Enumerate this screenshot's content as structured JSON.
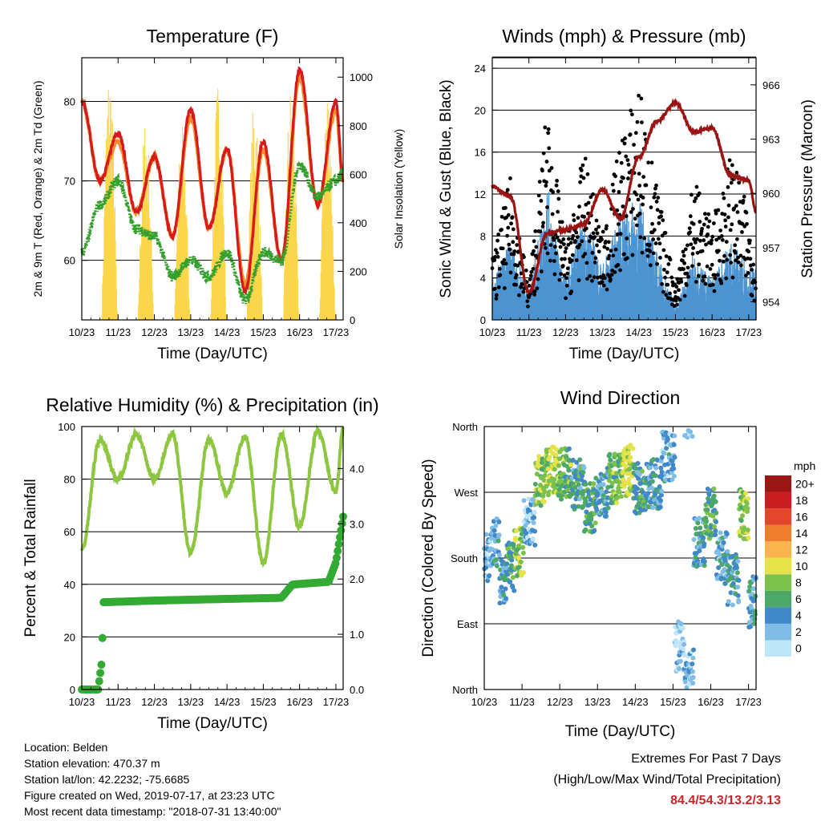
{
  "colors": {
    "t2m": "#d7191c",
    "t9m": "#f58d2b",
    "td2m": "#33a02c",
    "solar": "#fbd64b",
    "wind": "#4d94d1",
    "gust": "#000000",
    "pressure": "#9b1414",
    "rh": "#8dc63f",
    "precip": "#33aa33",
    "highlight": "#c8262b"
  },
  "time_ticks": [
    "10/23",
    "11/23",
    "12/23",
    "13/23",
    "14/23",
    "15/23",
    "16/23",
    "17/23"
  ],
  "temperature": {
    "title": "Temperature (F)",
    "xlabel": "Time (Day/UTC)",
    "ylabel_left": "2m & 9m T (Red, Orange) & 2m Td (Green)",
    "ylabel_right": "Solar Insolation (Yellow)",
    "left_ticks": [
      "60",
      "70",
      "80"
    ],
    "right_ticks": [
      "0",
      "200",
      "400",
      "600",
      "800",
      "1000"
    ]
  },
  "winds": {
    "title": "Winds (mph) & Pressure (mb)",
    "xlabel": "Time (Day/UTC)",
    "ylabel_left": "Sonic Wind & Gust (Blue, Black)",
    "ylabel_right": "Station Pressure (Maroon)",
    "left_ticks": [
      "0",
      "4",
      "8",
      "12",
      "16",
      "20",
      "24"
    ],
    "right_ticks": [
      "954",
      "957",
      "960",
      "963",
      "966"
    ]
  },
  "humidity": {
    "title": "Relative Humidity (%) & Precipitation (in)",
    "xlabel": "Time (Day/UTC)",
    "ylabel_left": "Percent & Total Rainfall",
    "left_ticks": [
      "0",
      "20",
      "40",
      "60",
      "80",
      "100"
    ],
    "right_ticks": [
      "0.0",
      "1.0",
      "2.0",
      "3.0",
      "4.0"
    ]
  },
  "direction": {
    "title": "Wind Direction",
    "xlabel": "Time (Day/UTC)",
    "ylabel_left": "Direction (Colored By Speed)",
    "dir_ticks": [
      "North",
      "East",
      "South",
      "West",
      "North"
    ],
    "legend_title": "mph",
    "legend_labels": [
      "0",
      "2",
      "4",
      "6",
      "8",
      "10",
      "12",
      "14",
      "16",
      "18",
      "20+"
    ],
    "legend_colors": [
      "#bfe6f6",
      "#7fbde6",
      "#4188c8",
      "#4ca868",
      "#7cc14a",
      "#e6e24a",
      "#f9b54b",
      "#f07d2e",
      "#e3462a",
      "#c81e22",
      "#9d1616"
    ]
  },
  "info": {
    "location": "Location: Belden",
    "elevation": "Station elevation: 470.37 m",
    "latlon": "Station lat/lon: 42.2232; -75.6685",
    "created": "Figure created on Wed, 2019-07-17, at 23:23 UTC",
    "recent": "Most recent data timestamp: \"2018-07-31 13:40:00\""
  },
  "extremes": {
    "title": "Extremes For Past 7 Days",
    "subtitle": "(High/Low/Max Wind/Total Precipitation)",
    "values": "84.4/54.3/13.2/3.13"
  },
  "chart_data": [
    {
      "type": "line",
      "title": "Temperature (F)",
      "xlabel": "Time (Day/UTC)",
      "ylabel": "2m & 9m T (Red, Orange) & 2m Td (Green)",
      "y2label": "Solar Insolation (Yellow)",
      "x": [
        10,
        10.5,
        11,
        11.5,
        12,
        12.5,
        13,
        13.5,
        14,
        14.5,
        15,
        15.5,
        16,
        16.5,
        17,
        17.2
      ],
      "xlim": [
        10,
        17.2
      ],
      "ylim": [
        52.5,
        85.5
      ],
      "y2lim": [
        0,
        1080
      ],
      "series": [
        {
          "name": "2m T",
          "values": [
            80,
            70,
            76,
            66,
            73,
            63,
            79,
            64,
            74,
            56,
            75,
            60,
            84,
            67,
            80,
            70
          ]
        },
        {
          "name": "9m T",
          "values": [
            80,
            70,
            75,
            66,
            73,
            63,
            78,
            64,
            74,
            57,
            74,
            60,
            83,
            67,
            79,
            70
          ]
        },
        {
          "name": "2m Td",
          "values": [
            61,
            67,
            70,
            64,
            63,
            58,
            60,
            58,
            61,
            55,
            61,
            60,
            72,
            68,
            70,
            71
          ]
        },
        {
          "name": "Solar Insolation",
          "values": [
            20,
            900,
            30,
            800,
            20,
            850,
            30,
            900,
            20,
            950,
            30,
            950,
            20,
            1000,
            30,
            600
          ]
        }
      ]
    },
    {
      "type": "line",
      "title": "Winds (mph) & Pressure (mb)",
      "xlabel": "Time (Day/UTC)",
      "ylabel": "Sonic Wind & Gust (Blue, Black)",
      "y2label": "Station Pressure (Maroon)",
      "x": [
        10,
        10.5,
        11,
        11.5,
        12,
        12.5,
        13,
        13.5,
        14,
        14.5,
        15,
        15.5,
        16,
        16.5,
        17,
        17.2
      ],
      "xlim": [
        10,
        17.2
      ],
      "ylim": [
        0,
        25
      ],
      "y2lim": [
        953,
        967.5
      ],
      "series": [
        {
          "name": "Sonic Wind",
          "values": [
            3,
            6,
            2,
            10,
            3,
            8,
            4,
            8,
            9,
            5,
            1,
            5,
            3,
            6,
            4,
            4
          ]
        },
        {
          "name": "Gust",
          "values": [
            5,
            12,
            3,
            18,
            6,
            14,
            7,
            15,
            20,
            11,
            3,
            12,
            8,
            14,
            9,
            5
          ]
        },
        {
          "name": "Station Pressure",
          "values": [
            960.4,
            959.8,
            954.5,
            957.8,
            958.0,
            958.3,
            960.2,
            958.6,
            962.0,
            964.0,
            965.0,
            963.4,
            963.6,
            961.0,
            960.7,
            959.0
          ]
        }
      ]
    },
    {
      "type": "line",
      "title": "Relative Humidity (%) & Precipitation (in)",
      "xlabel": "Time (Day/UTC)",
      "ylabel": "Percent & Total Rainfall",
      "x": [
        10,
        10.5,
        11,
        11.5,
        12,
        12.5,
        13,
        13.5,
        14,
        14.5,
        15,
        15.5,
        16,
        16.5,
        17,
        17.2
      ],
      "xlim": [
        10,
        17.2
      ],
      "ylim": [
        0,
        100
      ],
      "y2lim": [
        0,
        4.76
      ],
      "series": [
        {
          "name": "Relative Humidity",
          "values": [
            53,
            95,
            80,
            97,
            80,
            97,
            52,
            95,
            75,
            96,
            48,
            97,
            62,
            98,
            75,
            99
          ]
        },
        {
          "name": "Total Precipitation",
          "values": [
            0.0,
            0.2,
            1.58,
            1.58,
            1.6,
            1.61,
            1.63,
            1.64,
            1.65,
            1.65,
            1.66,
            1.66,
            1.9,
            1.92,
            2.2,
            3.13
          ]
        }
      ]
    },
    {
      "type": "scatter",
      "title": "Wind Direction",
      "xlabel": "Time (Day/UTC)",
      "ylabel": "Direction (Colored By Speed)",
      "xlim": [
        10,
        17.2
      ],
      "ylim": [
        0,
        360
      ],
      "colorbar_label": "mph",
      "points": [
        {
          "x": 10.1,
          "dir": 180,
          "speed": 2
        },
        {
          "x": 10.3,
          "dir": 200,
          "speed": 3
        },
        {
          "x": 10.5,
          "dir": 150,
          "speed": 4
        },
        {
          "x": 10.7,
          "dir": 170,
          "speed": 6
        },
        {
          "x": 10.9,
          "dir": 190,
          "speed": 8
        },
        {
          "x": 11.2,
          "dir": 230,
          "speed": 2
        },
        {
          "x": 11.5,
          "dir": 285,
          "speed": 8
        },
        {
          "x": 11.8,
          "dir": 300,
          "speed": 9
        },
        {
          "x": 12.1,
          "dir": 295,
          "speed": 7
        },
        {
          "x": 12.5,
          "dir": 280,
          "speed": 5
        },
        {
          "x": 12.8,
          "dir": 250,
          "speed": 6
        },
        {
          "x": 13.1,
          "dir": 270,
          "speed": 4
        },
        {
          "x": 13.5,
          "dir": 290,
          "speed": 7
        },
        {
          "x": 13.8,
          "dir": 300,
          "speed": 10
        },
        {
          "x": 14.1,
          "dir": 275,
          "speed": 5
        },
        {
          "x": 14.5,
          "dir": 280,
          "speed": 4
        },
        {
          "x": 14.9,
          "dir": 320,
          "speed": 3
        },
        {
          "x": 15.2,
          "dir": 60,
          "speed": 1
        },
        {
          "x": 15.4,
          "dir": 20,
          "speed": 2
        },
        {
          "x": 15.7,
          "dir": 200,
          "speed": 4
        },
        {
          "x": 16.0,
          "dir": 240,
          "speed": 6
        },
        {
          "x": 16.3,
          "dir": 180,
          "speed": 3
        },
        {
          "x": 16.6,
          "dir": 150,
          "speed": 4
        },
        {
          "x": 16.9,
          "dir": 240,
          "speed": 8
        },
        {
          "x": 17.1,
          "dir": 120,
          "speed": 4
        }
      ]
    }
  ]
}
